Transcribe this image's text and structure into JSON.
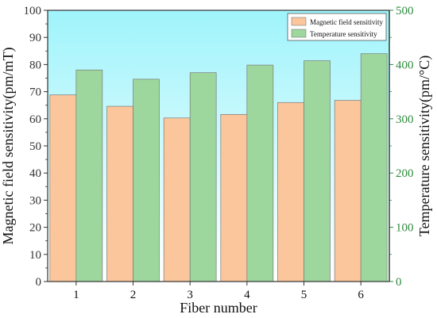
{
  "chart_data": {
    "type": "bar",
    "categories": [
      "1",
      "2",
      "3",
      "4",
      "5",
      "6"
    ],
    "xlabel": "Fiber number",
    "ylabel_left": "Magnetic field sensitivity(pm/mT)",
    "ylabel_right": "Temperature sensitivity(pm/°C)",
    "ylim_left": [
      0,
      100
    ],
    "ylim_right": [
      0,
      500
    ],
    "yticks_left": [
      "0",
      "10",
      "20",
      "30",
      "40",
      "50",
      "60",
      "70",
      "80",
      "90",
      "100"
    ],
    "yticks_right": [
      "0",
      "100",
      "200",
      "300",
      "400",
      "500"
    ],
    "grid": false,
    "legend_position": "top-right",
    "series": [
      {
        "name": "Magnetic field sensitivity",
        "axis": "left",
        "color": "#fcc69c",
        "values": [
          68.8,
          64.6,
          60.3,
          61.6,
          66.0,
          66.8
        ]
      },
      {
        "name": "Temperature sensitivity",
        "axis": "right",
        "color": "#9dd79d",
        "values": [
          390,
          373,
          385,
          399,
          407,
          420
        ]
      }
    ],
    "colors": {
      "left_axis": "#333333",
      "right_axis": "#2e8b3e",
      "background_top": "#9ff4fb",
      "background_bottom": "#ffffff",
      "bar_stroke": "#7a7a7a"
    }
  }
}
